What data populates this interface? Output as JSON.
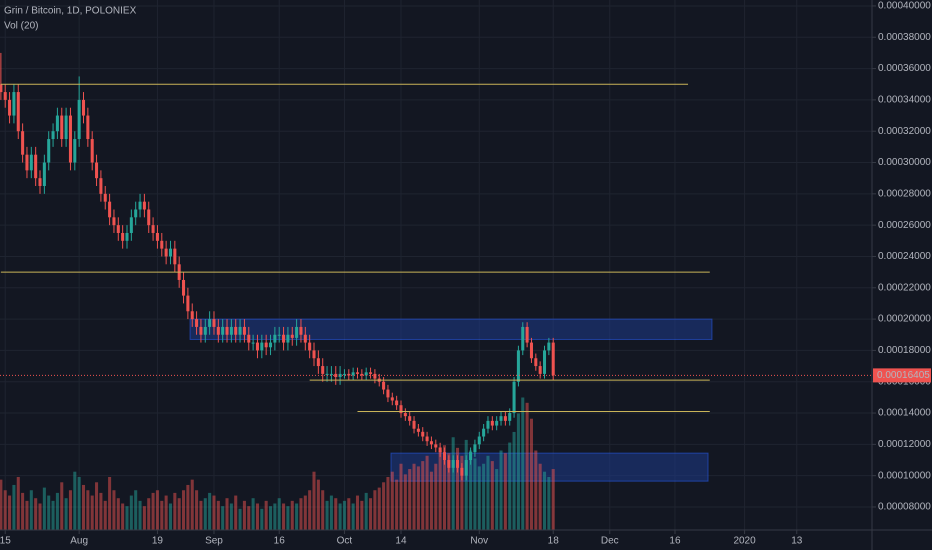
{
  "chart_data": {
    "type": "candlestick",
    "title": "Grin / Bitcoin, 1D, POLONIEX",
    "volume_label": "Vol (20)",
    "up_color": "#26a69a",
    "down_color": "#ef5350",
    "level_color": "#c9b458",
    "zone_color": "#1e3a8a",
    "grid": true,
    "xlim": [
      0.8,
      201.3
    ],
    "xticks": [
      {
        "value": 2,
        "label": "15"
      },
      {
        "value": 19,
        "label": "Aug"
      },
      {
        "value": 37,
        "label": "19"
      },
      {
        "value": 50,
        "label": "Sep"
      },
      {
        "value": 65,
        "label": "16"
      },
      {
        "value": 80,
        "label": "Oct"
      },
      {
        "value": 93,
        "label": "14"
      },
      {
        "value": 111,
        "label": "Nov"
      },
      {
        "value": 128,
        "label": "18"
      },
      {
        "value": 141,
        "label": "Dec"
      },
      {
        "value": 156,
        "label": "16"
      },
      {
        "value": 172,
        "label": "2020"
      },
      {
        "value": 184,
        "label": "13"
      }
    ],
    "ylim": [
      6.53e-05,
      0.0004038
    ],
    "yticks": [
      {
        "value": 8e-05,
        "label": "0.00008000"
      },
      {
        "value": 0.0001,
        "label": "0.00010000"
      },
      {
        "value": 0.00012,
        "label": "0.00012000"
      },
      {
        "value": 0.00014,
        "label": "0.00014000"
      },
      {
        "value": 0.00016,
        "label": "0.00016000"
      },
      {
        "value": 0.00018,
        "label": "0.00018000"
      },
      {
        "value": 0.0002,
        "label": "0.00020000"
      },
      {
        "value": 0.00022,
        "label": "0.00022000"
      },
      {
        "value": 0.00024,
        "label": "0.00024000"
      },
      {
        "value": 0.00026,
        "label": "0.00026000"
      },
      {
        "value": 0.00028,
        "label": "0.00028000"
      },
      {
        "value": 0.0003,
        "label": "0.00030000"
      },
      {
        "value": 0.00032,
        "label": "0.00032000"
      },
      {
        "value": 0.00034,
        "label": "0.00034000"
      },
      {
        "value": 0.00036,
        "label": "0.00036000"
      },
      {
        "value": 0.00038,
        "label": "0.00038000"
      },
      {
        "value": 0.0004,
        "label": "0.00040000"
      }
    ],
    "volume_ylim": [
      0,
      400
    ],
    "x": [
      1,
      2,
      3,
      4,
      5,
      6,
      7,
      8,
      9,
      10,
      11,
      12,
      13,
      14,
      15,
      16,
      17,
      18,
      19,
      20,
      21,
      22,
      23,
      24,
      25,
      26,
      27,
      28,
      29,
      30,
      31,
      32,
      33,
      34,
      35,
      36,
      37,
      38,
      39,
      40,
      41,
      42,
      43,
      44,
      45,
      46,
      47,
      48,
      49,
      50,
      51,
      52,
      53,
      54,
      55,
      56,
      57,
      58,
      59,
      60,
      61,
      62,
      63,
      64,
      65,
      66,
      67,
      68,
      69,
      70,
      71,
      72,
      73,
      74,
      75,
      76,
      77,
      78,
      79,
      80,
      81,
      82,
      83,
      84,
      85,
      86,
      87,
      88,
      89,
      90,
      91,
      92,
      93,
      94,
      95,
      96,
      97,
      98,
      99,
      100,
      101,
      102,
      103,
      104,
      105,
      106,
      107,
      108,
      109,
      110,
      111,
      112,
      113,
      114,
      115,
      116,
      117,
      118,
      119,
      120,
      121,
      122,
      123,
      124,
      125,
      126,
      127,
      128
    ],
    "open": [
      0.00035,
      0.000345,
      0.00034,
      0.00033,
      0.000345,
      0.00032,
      0.000305,
      0.000295,
      0.000305,
      0.00029,
      0.000285,
      0.0003,
      0.000315,
      0.00032,
      0.00033,
      0.000315,
      0.00033,
      0.0003,
      0.000315,
      0.00034,
      0.00033,
      0.000315,
      0.0003,
      0.00029,
      0.00028,
      0.000275,
      0.000265,
      0.00026,
      0.000255,
      0.00025,
      0.000255,
      0.000265,
      0.00027,
      0.000275,
      0.00027,
      0.00026,
      0.000255,
      0.00025,
      0.000245,
      0.00024,
      0.000245,
      0.000235,
      0.000225,
      0.000215,
      0.000205,
      0.0002,
      0.000195,
      0.00019,
      0.000195,
      0.0002,
      0.000195,
      0.00019,
      0.000195,
      0.00019,
      0.000195,
      0.00019,
      0.000195,
      0.00019,
      0.000185,
      0.000185,
      0.00018,
      0.000185,
      0.000182,
      0.000185,
      0.00019,
      0.00019,
      0.000185,
      0.00019,
      0.000188,
      0.000195,
      0.00019,
      0.000185,
      0.00018,
      0.000175,
      0.00017,
      0.000165,
      0.000165,
      0.000165,
      0.000163,
      0.000165,
      0.000165,
      0.000164,
      0.000166,
      0.000165,
      0.000164,
      0.000166,
      0.000165,
      0.000162,
      0.00016,
      0.000155,
      0.00015,
      0.000148,
      0.000145,
      0.00014,
      0.000138,
      0.000135,
      0.00013,
      0.000128,
      0.000125,
      0.000122,
      0.00012,
      0.000118,
      0.000115,
      0.00011,
      0.000105,
      0.00011,
      0.000105,
      0.0001,
      0.00011,
      0.000115,
      0.00012,
      0.000125,
      0.00013,
      0.000135,
      0.000132,
      0.000135,
      0.000138,
      0.000135,
      0.00014,
      0.00016,
      0.00018,
      0.000195,
      0.000185,
      0.000175,
      0.00017,
      0.000165,
      0.00018,
      0.000185
    ],
    "high": [
      0.00037,
      0.00035,
      0.000345,
      0.00035,
      0.00035,
      0.000325,
      0.00031,
      0.00031,
      0.00031,
      0.000295,
      0.000305,
      0.00032,
      0.000325,
      0.000335,
      0.000335,
      0.000335,
      0.000335,
      0.00032,
      0.000355,
      0.000345,
      0.000335,
      0.00032,
      0.000305,
      0.000295,
      0.000285,
      0.00028,
      0.00027,
      0.000265,
      0.00026,
      0.00026,
      0.00027,
      0.000275,
      0.00028,
      0.00028,
      0.000275,
      0.000265,
      0.00026,
      0.000255,
      0.00025,
      0.00025,
      0.00025,
      0.00024,
      0.00023,
      0.00022,
      0.00021,
      0.000205,
      0.0002,
      0.0002,
      0.000205,
      0.000205,
      0.0002,
      0.0002,
      0.0002,
      0.0002,
      0.0002,
      0.0002,
      0.0002,
      0.000195,
      0.00019,
      0.00019,
      0.00019,
      0.00019,
      0.00019,
      0.000195,
      0.000195,
      0.000195,
      0.000195,
      0.000195,
      0.0002,
      0.0002,
      0.000195,
      0.00019,
      0.000185,
      0.00018,
      0.000175,
      0.00017,
      0.00017,
      0.00017,
      0.00017,
      0.000168,
      0.000168,
      0.000169,
      0.000169,
      0.000168,
      0.000169,
      0.000169,
      0.000168,
      0.000165,
      0.000163,
      0.000158,
      0.000153,
      0.000151,
      0.000148,
      0.000143,
      0.000141,
      0.000138,
      0.000133,
      0.000131,
      0.000128,
      0.000125,
      0.000123,
      0.000121,
      0.000118,
      0.000113,
      0.000113,
      0.000113,
      0.000108,
      0.000113,
      0.000118,
      0.000123,
      0.000128,
      0.000133,
      0.000138,
      0.000138,
      0.000138,
      0.000141,
      0.000141,
      0.000143,
      0.000163,
      0.000183,
      0.000198,
      0.000198,
      0.000188,
      0.000178,
      0.000173,
      0.000183,
      0.000188,
      0.000188
    ],
    "low": [
      0.00034,
      0.000335,
      0.000325,
      0.000325,
      0.000315,
      0.0003,
      0.00029,
      0.00029,
      0.000285,
      0.00028,
      0.00028,
      0.000295,
      0.00031,
      0.000315,
      0.00031,
      0.00031,
      0.000295,
      0.000295,
      0.00031,
      0.000325,
      0.00031,
      0.000295,
      0.000285,
      0.000275,
      0.00027,
      0.00026,
      0.000255,
      0.00025,
      0.000245,
      0.000245,
      0.00025,
      0.00026,
      0.000265,
      0.000265,
      0.000255,
      0.00025,
      0.000245,
      0.00024,
      0.000235,
      0.000235,
      0.00023,
      0.00022,
      0.00021,
      0.0002,
      0.000195,
      0.00019,
      0.000185,
      0.000185,
      0.00019,
      0.00019,
      0.000185,
      0.000185,
      0.000185,
      0.000185,
      0.000185,
      0.000185,
      0.000185,
      0.00018,
      0.00018,
      0.000175,
      0.000175,
      0.000177,
      0.000177,
      0.00018,
      0.000185,
      0.00018,
      0.00018,
      0.000183,
      0.000183,
      0.000185,
      0.00018,
      0.000175,
      0.00017,
      0.000165,
      0.00016,
      0.00016,
      0.00016,
      0.000158,
      0.000158,
      0.000162,
      0.000161,
      0.000161,
      0.000162,
      0.000161,
      0.000161,
      0.000162,
      0.000159,
      0.000157,
      0.000152,
      0.000147,
      0.000145,
      0.000142,
      0.000137,
      0.000135,
      0.000132,
      0.000127,
      0.000125,
      0.000122,
      0.000119,
      0.000117,
      0.000115,
      0.000112,
      0.000107,
      0.000102,
      0.000102,
      0.000102,
      9.7e-05,
      9.7e-05,
      0.000107,
      0.000112,
      0.000117,
      0.000122,
      0.000127,
      0.000129,
      0.000129,
      0.000132,
      0.000132,
      0.000132,
      0.000137,
      0.000157,
      0.000177,
      0.000182,
      0.000172,
      0.000167,
      0.000162,
      0.000162,
      0.000177,
      0.000161
    ],
    "close": [
      0.000345,
      0.00034,
      0.00033,
      0.000345,
      0.00032,
      0.000305,
      0.000295,
      0.000305,
      0.00029,
      0.000285,
      0.0003,
      0.000315,
      0.00032,
      0.00033,
      0.000315,
      0.00033,
      0.0003,
      0.000315,
      0.00034,
      0.00033,
      0.000315,
      0.0003,
      0.00029,
      0.00028,
      0.000275,
      0.000265,
      0.00026,
      0.000255,
      0.00025,
      0.000255,
      0.000265,
      0.00027,
      0.000275,
      0.00027,
      0.00026,
      0.000255,
      0.00025,
      0.000245,
      0.00024,
      0.000245,
      0.000235,
      0.000225,
      0.000215,
      0.000205,
      0.0002,
      0.000195,
      0.00019,
      0.000195,
      0.0002,
      0.000195,
      0.00019,
      0.000195,
      0.00019,
      0.000195,
      0.00019,
      0.000195,
      0.00019,
      0.000185,
      0.000185,
      0.00018,
      0.000185,
      0.000182,
      0.000185,
      0.00019,
      0.00019,
      0.000185,
      0.00019,
      0.000188,
      0.000195,
      0.00019,
      0.000185,
      0.00018,
      0.000175,
      0.00017,
      0.000165,
      0.000165,
      0.000165,
      0.000163,
      0.000165,
      0.000165,
      0.000164,
      0.000166,
      0.000165,
      0.000164,
      0.000166,
      0.000165,
      0.000162,
      0.00016,
      0.000155,
      0.00015,
      0.000148,
      0.000145,
      0.00014,
      0.000138,
      0.000135,
      0.00013,
      0.000128,
      0.000125,
      0.000122,
      0.00012,
      0.000118,
      0.000115,
      0.00011,
      0.000105,
      0.00011,
      0.000105,
      0.0001,
      0.00011,
      0.000115,
      0.00012,
      0.000125,
      0.00013,
      0.000135,
      0.000132,
      0.000135,
      0.000138,
      0.000135,
      0.00014,
      0.00016,
      0.00018,
      0.000195,
      0.000185,
      0.000175,
      0.00017,
      0.000165,
      0.00018,
      0.000185,
      0.00016405
    ],
    "volume": [
      38,
      30,
      26,
      34,
      40,
      28,
      22,
      30,
      24,
      20,
      32,
      26,
      22,
      28,
      36,
      24,
      30,
      44,
      40,
      34,
      30,
      26,
      36,
      28,
      22,
      40,
      30,
      24,
      20,
      18,
      26,
      30,
      22,
      18,
      24,
      28,
      30,
      22,
      26,
      20,
      28,
      24,
      30,
      34,
      38,
      30,
      22,
      24,
      28,
      26,
      22,
      18,
      24,
      20,
      26,
      16,
      22,
      18,
      24,
      20,
      16,
      22,
      18,
      20,
      24,
      20,
      18,
      22,
      20,
      24,
      26,
      30,
      44,
      38,
      30,
      22,
      26,
      24,
      20,
      22,
      24,
      20,
      26,
      22,
      28,
      24,
      30,
      32,
      36,
      40,
      44,
      38,
      50,
      42,
      46,
      50,
      48,
      52,
      56,
      44,
      50,
      60,
      64,
      58,
      70,
      62,
      56,
      68,
      60,
      54,
      48,
      50,
      56,
      52,
      46,
      60,
      58,
      66,
      74,
      88,
      100,
      96,
      84,
      60,
      50,
      44,
      40,
      46
    ]
  },
  "levels": [
    {
      "value": 0.00035,
      "from": 1,
      "to": 159
    },
    {
      "value": 0.00023,
      "from": 1,
      "to": 164
    },
    {
      "value": 0.000161,
      "from": 72,
      "to": 164
    },
    {
      "value": 0.000141,
      "from": 83,
      "to": 164
    }
  ],
  "zones": [
    {
      "top": 0.0002,
      "bottom": 0.000187,
      "from": 44.5,
      "to": 164.5
    },
    {
      "top": 0.0001144,
      "bottom": 9.65e-05,
      "from": 90.7,
      "to": 163.6
    }
  ]
}
